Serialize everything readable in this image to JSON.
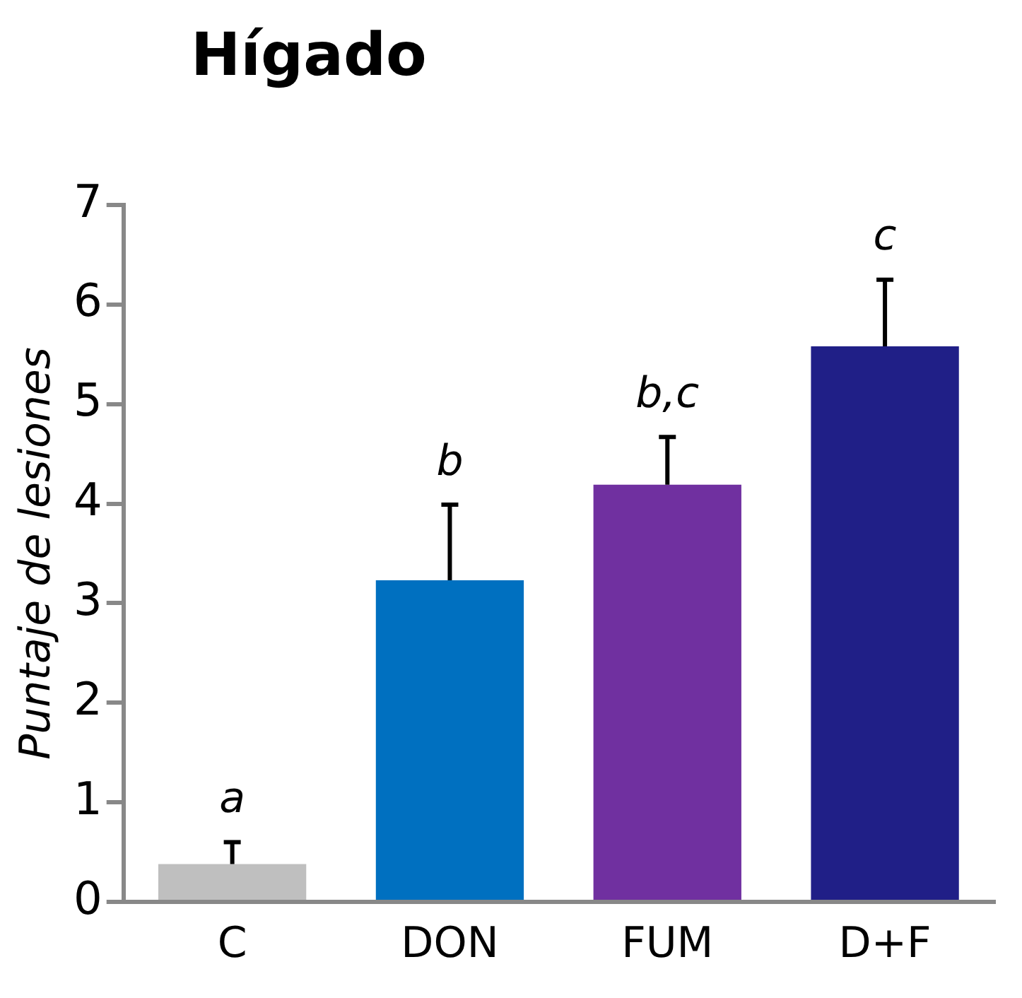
{
  "chart_data": {
    "type": "bar",
    "title": "Hígado",
    "ylabel": "Puntaje de lesiones",
    "categories": [
      "C",
      "DON",
      "FUM",
      "D+F"
    ],
    "values": [
      0.38,
      3.23,
      4.19,
      5.58
    ],
    "colors": [
      "#bfbfbf",
      "#0070c0",
      "#7030a0",
      "#201f87"
    ],
    "errors": [
      [
        0.38,
        0.6
      ],
      [
        3.23,
        3.99
      ],
      [
        4.19,
        4.67
      ],
      [
        5.58,
        6.25
      ]
    ],
    "ylim": [
      0,
      7
    ],
    "yticks": [
      0,
      1,
      2,
      3,
      4,
      5,
      6,
      7
    ],
    "grid": false,
    "legend": false,
    "annotations": [
      {
        "text": "a",
        "x": "C",
        "y": 0.6
      },
      {
        "text": "b",
        "x": "DON",
        "y": 3.99
      },
      {
        "text": "b,c",
        "x": "FUM",
        "y": 4.67
      },
      {
        "text": "c",
        "x": "D+F",
        "y": 6.25
      }
    ]
  }
}
